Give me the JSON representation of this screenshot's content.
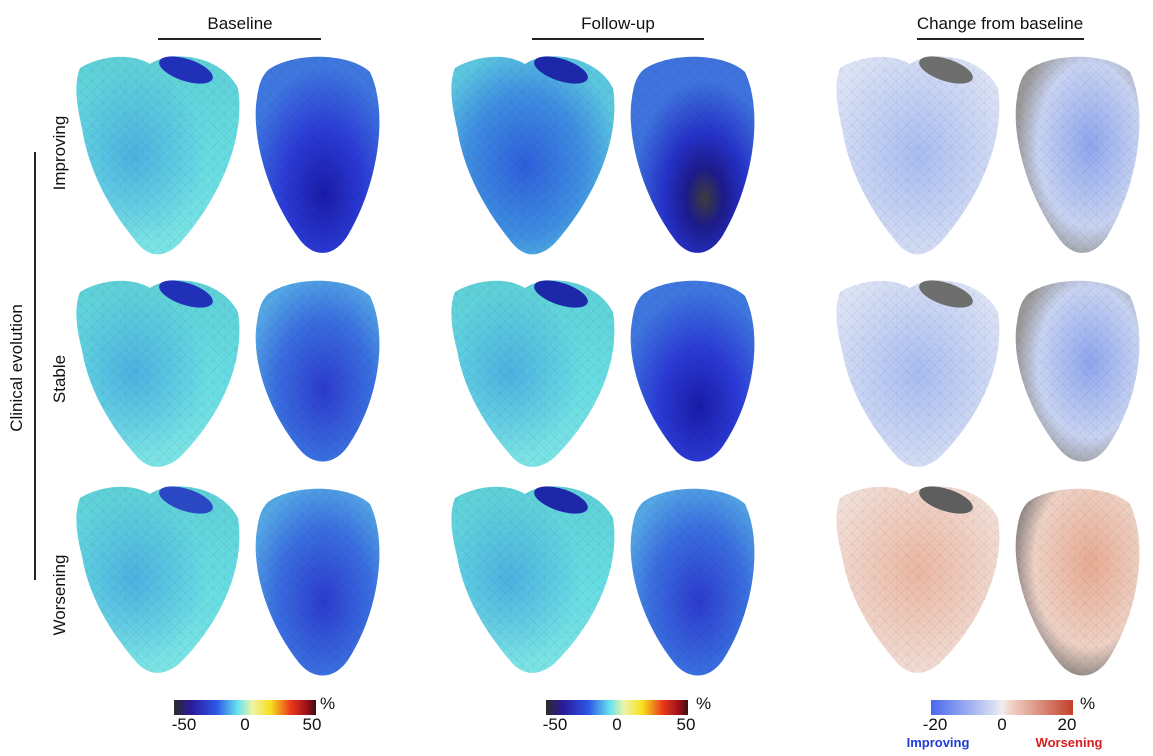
{
  "column_headers": {
    "baseline": "Baseline",
    "followup": "Follow-up",
    "change": "Change from baseline"
  },
  "group_label": "Clinical evolution",
  "row_labels": {
    "improving": "Improving",
    "stable": "Stable",
    "worsening": "Worsening"
  },
  "colorbars": {
    "strain_baseline": {
      "min_label": "-50",
      "mid_label": "0",
      "max_label": "50",
      "unit": "%"
    },
    "strain_followup": {
      "min_label": "-50",
      "mid_label": "0",
      "max_label": "50",
      "unit": "%"
    },
    "change": {
      "min_label": "-20",
      "mid_label": "0",
      "max_label": "20",
      "unit": "%",
      "improving_label": "Improving",
      "worsening_label": "Worsening"
    }
  },
  "colors": {
    "improving_text": "#1f3bd6",
    "worsening_text": "#d81e1e"
  }
}
